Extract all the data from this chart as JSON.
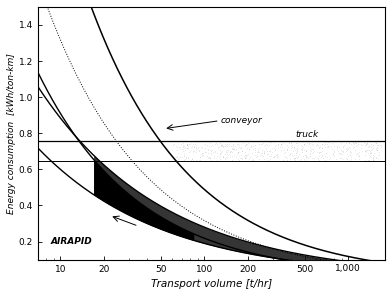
{
  "xlabel": "Transport volume [t/hr]",
  "ylabel": "Energy consumption  [kWh/ton-km]",
  "xlim": [
    7,
    1800
  ],
  "ylim": [
    0.1,
    1.5
  ],
  "truck_upper": 0.76,
  "truck_lower": 0.645,
  "truck_label": "truck",
  "conveyor_label": "conveyor",
  "airapid_label": "AIRAPID",
  "yticks": [
    0.2,
    0.4,
    0.6,
    0.8,
    1.0,
    1.2,
    1.4
  ],
  "xticks": [
    10,
    20,
    50,
    100,
    200,
    500,
    1000
  ],
  "xtick_labels": [
    "10",
    "20",
    "50",
    "100",
    "200",
    "500",
    "1,000"
  ]
}
